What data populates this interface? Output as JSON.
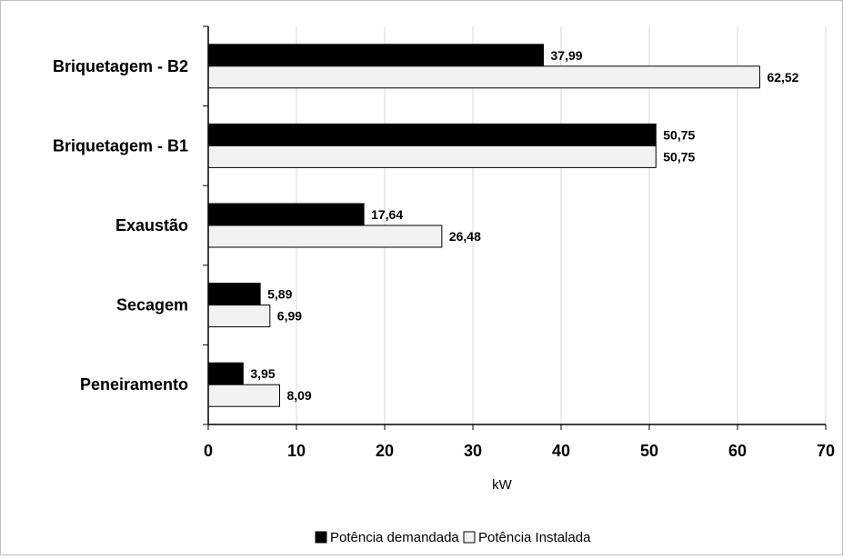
{
  "chart_data": {
    "type": "bar",
    "orientation": "horizontal",
    "categories": [
      "Peneiramento",
      "Secagem",
      "Exaustão",
      "Briquetagem - B1",
      "Briquetagem - B2"
    ],
    "series": [
      {
        "name": "Potência demandada",
        "values": [
          3.95,
          5.89,
          17.64,
          50.75,
          37.99
        ],
        "labels": [
          "3,95",
          "5,89",
          "17,64",
          "50,75",
          "37,99"
        ],
        "color": "#000000"
      },
      {
        "name": "Potência Instalada",
        "values": [
          8.09,
          6.99,
          26.48,
          50.75,
          62.52
        ],
        "labels": [
          "8,09",
          "6,99",
          "26,48",
          "50,75",
          "62,52"
        ],
        "color": "#f2f2f2"
      }
    ],
    "xlabel": "kW",
    "ylabel": "",
    "xlim": [
      0,
      70
    ],
    "xticks": [
      0,
      10,
      20,
      30,
      40,
      50,
      60,
      70
    ],
    "grid": "vertical",
    "legend_position": "bottom"
  }
}
